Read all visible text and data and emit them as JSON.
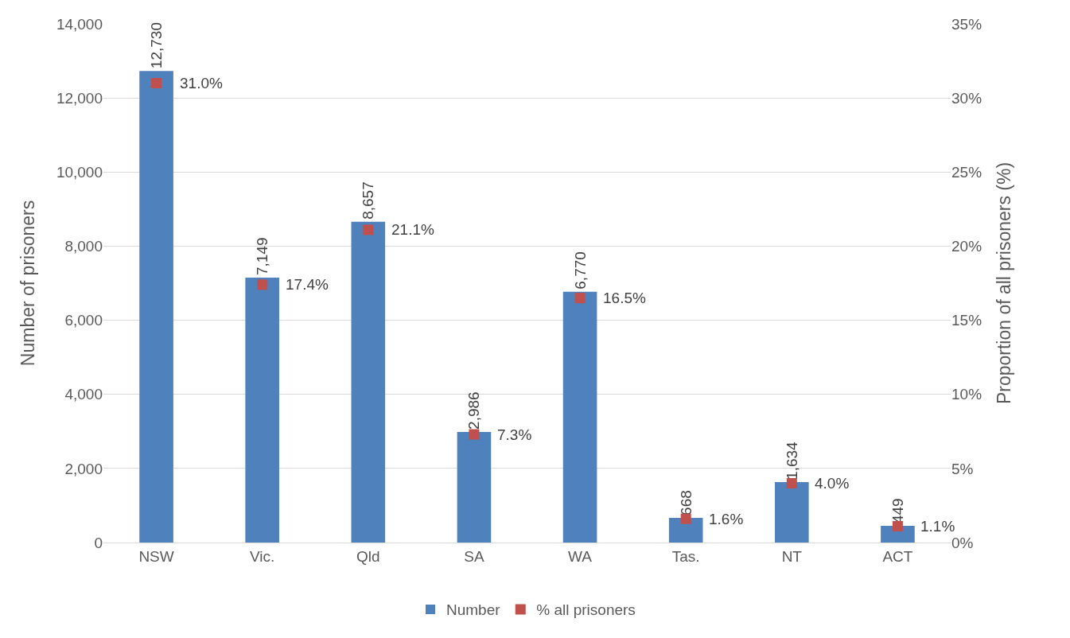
{
  "chart_data": {
    "type": "bar",
    "ylabel": "Number of prisoners",
    "y2label": "Proportion of all prisoners (%)",
    "categories": [
      "NSW",
      "Vic.",
      "Qld",
      "SA",
      "WA",
      "Tas.",
      "NT",
      "ACT"
    ],
    "series": [
      {
        "name": "Number",
        "color": "#4f81bd",
        "values": [
          12730,
          7149,
          8657,
          2986,
          6770,
          668,
          1634,
          449
        ],
        "value_labels": [
          "12,730",
          "7,149",
          "8,657",
          "2,986",
          "6,770",
          "668",
          "1,634",
          "449"
        ]
      },
      {
        "name": "% all prisoners",
        "type": "scatter",
        "axis": "y2",
        "marker": "square",
        "color": "#c0504d",
        "values": [
          31.0,
          17.4,
          21.1,
          7.3,
          16.5,
          1.6,
          4.0,
          1.1
        ],
        "value_labels": [
          "31.0%",
          "17.4%",
          "21.1%",
          "7.3%",
          "16.5%",
          "1.6%",
          "4.0%",
          "1.1%"
        ]
      }
    ],
    "ylim": [
      0,
      14000
    ],
    "yticks": [
      {
        "value": 0,
        "label": "0"
      },
      {
        "value": 2000,
        "label": "2,000"
      },
      {
        "value": 4000,
        "label": "4,000"
      },
      {
        "value": 6000,
        "label": "6,000"
      },
      {
        "value": 8000,
        "label": "8,000"
      },
      {
        "value": 10000,
        "label": "10,000"
      },
      {
        "value": 12000,
        "label": "12,000"
      },
      {
        "value": 14000,
        "label": "14,000"
      }
    ],
    "y2lim": [
      0,
      35
    ],
    "y2ticks": [
      {
        "value": 0,
        "label": "0%"
      },
      {
        "value": 5,
        "label": "5%"
      },
      {
        "value": 10,
        "label": "10%"
      },
      {
        "value": 15,
        "label": "15%"
      },
      {
        "value": 20,
        "label": "20%"
      },
      {
        "value": 25,
        "label": "25%"
      },
      {
        "value": 30,
        "label": "30%"
      },
      {
        "value": 35,
        "label": "35%"
      }
    ],
    "grid": "y",
    "legend": "bottom"
  }
}
